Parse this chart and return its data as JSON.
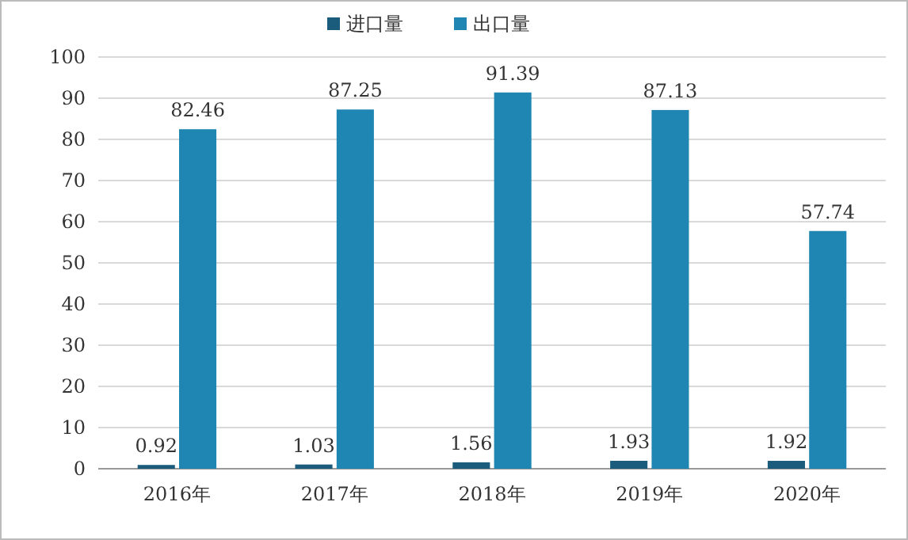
{
  "chart_data": {
    "type": "bar",
    "categories": [
      "2016年",
      "2017年",
      "2018年",
      "2019年",
      "2020年"
    ],
    "series": [
      {
        "name": "进口量",
        "color": "#1b5c7c",
        "values": [
          0.92,
          1.03,
          1.56,
          1.93,
          1.92
        ]
      },
      {
        "name": "出口量",
        "color": "#1f86b3",
        "values": [
          82.46,
          87.25,
          91.39,
          87.13,
          57.74
        ]
      }
    ],
    "ylim": [
      0,
      100
    ],
    "yticks": [
      0,
      10,
      20,
      30,
      40,
      50,
      60,
      70,
      80,
      90,
      100
    ],
    "grid": "y",
    "legend": "top",
    "data_labels": true
  }
}
